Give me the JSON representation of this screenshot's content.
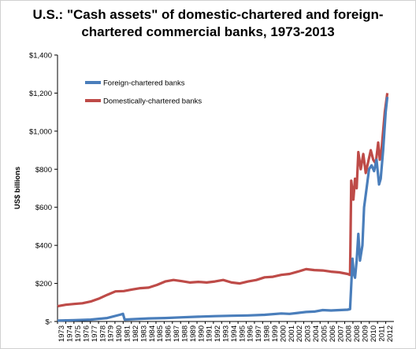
{
  "chart_data": {
    "type": "line",
    "title": "U.S.: \"Cash assets\" of domestic-chartered and foreign-chartered commercial banks, 1973-2013",
    "xlabel": "",
    "ylabel": "US$ billions",
    "ylim": [
      0,
      1400
    ],
    "yticks": [
      0,
      200,
      400,
      600,
      800,
      1000,
      1200,
      1400
    ],
    "ytick_labels": [
      "$-",
      "$200",
      "$400",
      "$600",
      "$800",
      "$1,000",
      "$1,200",
      "$1,400"
    ],
    "xlim": [
      1973,
      2013.6
    ],
    "xtick_labels": [
      "1973",
      "1974",
      "1975",
      "1976",
      "1977",
      "1978",
      "1979",
      "1980",
      "1981",
      "1982",
      "1983",
      "1984",
      "1985",
      "1986",
      "1987",
      "1988",
      "1989",
      "1990",
      "1991",
      "1992",
      "1993",
      "1994",
      "1995",
      "1996",
      "1997",
      "1998",
      "1999",
      "2000",
      "2001",
      "2002",
      "2003",
      "2004",
      "2005",
      "2006",
      "2007",
      "2008",
      "2008",
      "2009",
      "2010",
      "2011",
      "2012"
    ],
    "grid": false,
    "legend_position": "upper-left",
    "series": [
      {
        "name": "Foreign-chartered banks",
        "color": "#4a7ebb",
        "points": [
          [
            1973,
            5
          ],
          [
            1975,
            7
          ],
          [
            1977,
            10
          ],
          [
            1979,
            18
          ],
          [
            1980.5,
            35
          ],
          [
            1980.9,
            40
          ],
          [
            1981.1,
            10
          ],
          [
            1982,
            12
          ],
          [
            1984,
            16
          ],
          [
            1986,
            18
          ],
          [
            1988,
            22
          ],
          [
            1990,
            25
          ],
          [
            1992,
            28
          ],
          [
            1994,
            30
          ],
          [
            1996,
            32
          ],
          [
            1998,
            35
          ],
          [
            2000,
            42
          ],
          [
            2001,
            40
          ],
          [
            2002,
            45
          ],
          [
            2003,
            50
          ],
          [
            2004,
            52
          ],
          [
            2005,
            60
          ],
          [
            2006,
            58
          ],
          [
            2007,
            60
          ],
          [
            2008.0,
            62
          ],
          [
            2008.3,
            65
          ],
          [
            2008.5,
            240
          ],
          [
            2008.6,
            330
          ],
          [
            2008.75,
            250
          ],
          [
            2008.9,
            230
          ],
          [
            2009.1,
            320
          ],
          [
            2009.3,
            460
          ],
          [
            2009.5,
            320
          ],
          [
            2009.8,
            400
          ],
          [
            2010.0,
            600
          ],
          [
            2010.3,
            700
          ],
          [
            2010.6,
            800
          ],
          [
            2010.9,
            820
          ],
          [
            2011.2,
            790
          ],
          [
            2011.5,
            850
          ],
          [
            2011.8,
            720
          ],
          [
            2012.0,
            750
          ],
          [
            2012.3,
            900
          ],
          [
            2012.6,
            1100
          ],
          [
            2012.8,
            1180
          ]
        ]
      },
      {
        "name": "Domestically-chartered banks",
        "color": "#be4b48",
        "points": [
          [
            1973,
            80
          ],
          [
            1974,
            88
          ],
          [
            1975,
            92
          ],
          [
            1976,
            96
          ],
          [
            1977,
            105
          ],
          [
            1978,
            120
          ],
          [
            1979,
            140
          ],
          [
            1980,
            158
          ],
          [
            1981,
            160
          ],
          [
            1982,
            168
          ],
          [
            1983,
            175
          ],
          [
            1984,
            178
          ],
          [
            1985,
            192
          ],
          [
            1986,
            210
          ],
          [
            1987,
            218
          ],
          [
            1988,
            212
          ],
          [
            1989,
            205
          ],
          [
            1990,
            208
          ],
          [
            1991,
            205
          ],
          [
            1992,
            210
          ],
          [
            1993,
            218
          ],
          [
            1994,
            205
          ],
          [
            1995,
            200
          ],
          [
            1996,
            210
          ],
          [
            1997,
            218
          ],
          [
            1998,
            232
          ],
          [
            1999,
            235
          ],
          [
            2000,
            245
          ],
          [
            2001,
            250
          ],
          [
            2002,
            262
          ],
          [
            2003,
            275
          ],
          [
            2004,
            270
          ],
          [
            2005,
            268
          ],
          [
            2006,
            262
          ],
          [
            2007,
            258
          ],
          [
            2008.0,
            250
          ],
          [
            2008.3,
            245
          ],
          [
            2008.45,
            740
          ],
          [
            2008.7,
            640
          ],
          [
            2008.9,
            750
          ],
          [
            2009.1,
            700
          ],
          [
            2009.3,
            890
          ],
          [
            2009.6,
            800
          ],
          [
            2009.9,
            880
          ],
          [
            2010.2,
            780
          ],
          [
            2010.5,
            840
          ],
          [
            2010.8,
            900
          ],
          [
            2011.1,
            850
          ],
          [
            2011.4,
            830
          ],
          [
            2011.7,
            940
          ],
          [
            2011.9,
            850
          ],
          [
            2012.1,
            900
          ],
          [
            2012.3,
            1000
          ],
          [
            2012.5,
            1100
          ],
          [
            2012.8,
            1200
          ]
        ]
      }
    ]
  }
}
